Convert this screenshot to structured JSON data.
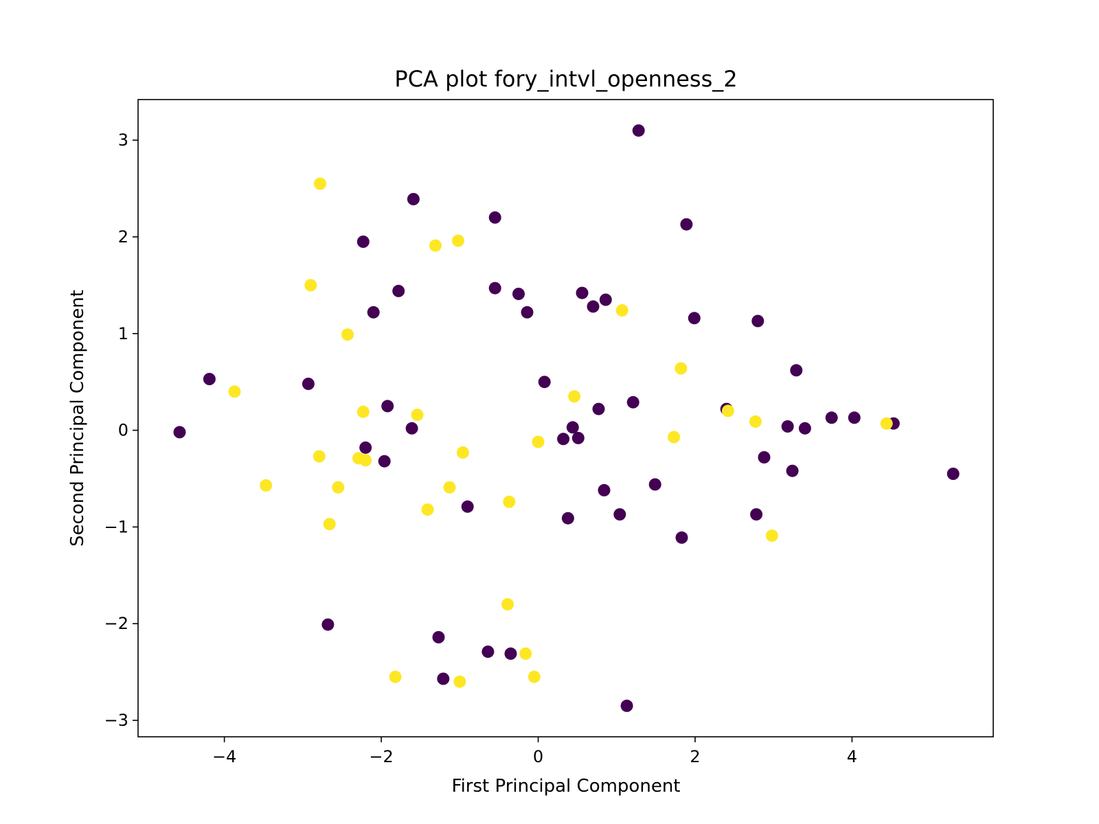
{
  "chart_data": {
    "type": "scatter",
    "title": "PCA plot fory_intvl_openness_2",
    "xlabel": "First Principal Component",
    "ylabel": "Second Principal Component",
    "xlim": [
      -5.1,
      5.8
    ],
    "ylim": [
      -3.17,
      3.42
    ],
    "xticks": [
      -4,
      -2,
      0,
      2,
      4
    ],
    "yticks": [
      -3,
      -2,
      -1,
      0,
      1,
      2,
      3
    ],
    "grid": false,
    "legend": "none",
    "colors": {
      "class_0": "#440154",
      "class_1": "#fde725"
    },
    "series": [
      {
        "class": "class_0",
        "color": "#440154",
        "points": [
          [
            1.28,
            3.1
          ],
          [
            -1.59,
            2.39
          ],
          [
            -0.55,
            2.2
          ],
          [
            1.89,
            2.13
          ],
          [
            -2.23,
            1.95
          ],
          [
            -1.78,
            1.44
          ],
          [
            -0.55,
            1.47
          ],
          [
            -0.25,
            1.41
          ],
          [
            0.56,
            1.42
          ],
          [
            0.86,
            1.35
          ],
          [
            0.7,
            1.28
          ],
          [
            -2.1,
            1.22
          ],
          [
            -0.14,
            1.22
          ],
          [
            1.99,
            1.16
          ],
          [
            2.8,
            1.13
          ],
          [
            3.29,
            0.62
          ],
          [
            -4.19,
            0.53
          ],
          [
            -2.93,
            0.48
          ],
          [
            0.08,
            0.5
          ],
          [
            1.21,
            0.29
          ],
          [
            -1.92,
            0.25
          ],
          [
            0.77,
            0.22
          ],
          [
            2.4,
            0.22
          ],
          [
            3.74,
            0.13
          ],
          [
            4.03,
            0.13
          ],
          [
            4.53,
            0.07
          ],
          [
            3.18,
            0.04
          ],
          [
            3.4,
            0.02
          ],
          [
            -1.61,
            0.02
          ],
          [
            0.44,
            0.03
          ],
          [
            -4.57,
            -0.02
          ],
          [
            0.32,
            -0.09
          ],
          [
            0.51,
            -0.08
          ],
          [
            -2.2,
            -0.18
          ],
          [
            -1.96,
            -0.32
          ],
          [
            2.88,
            -0.28
          ],
          [
            3.24,
            -0.42
          ],
          [
            5.29,
            -0.45
          ],
          [
            1.49,
            -0.56
          ],
          [
            0.84,
            -0.62
          ],
          [
            -0.9,
            -0.79
          ],
          [
            0.38,
            -0.91
          ],
          [
            1.04,
            -0.87
          ],
          [
            2.78,
            -0.87
          ],
          [
            1.83,
            -1.11
          ],
          [
            -2.68,
            -2.01
          ],
          [
            -1.27,
            -2.14
          ],
          [
            -0.64,
            -2.29
          ],
          [
            -0.35,
            -2.31
          ],
          [
            -1.21,
            -2.57
          ],
          [
            1.13,
            -2.85
          ]
        ]
      },
      {
        "class": "class_1",
        "color": "#fde725",
        "points": [
          [
            -2.78,
            2.55
          ],
          [
            -1.31,
            1.91
          ],
          [
            -1.02,
            1.96
          ],
          [
            -2.9,
            1.5
          ],
          [
            1.07,
            1.24
          ],
          [
            -2.43,
            0.99
          ],
          [
            1.82,
            0.64
          ],
          [
            -3.87,
            0.4
          ],
          [
            0.46,
            0.35
          ],
          [
            -2.23,
            0.19
          ],
          [
            -1.54,
            0.16
          ],
          [
            2.42,
            0.2
          ],
          [
            2.77,
            0.09
          ],
          [
            4.44,
            0.07
          ],
          [
            1.73,
            -0.07
          ],
          [
            0.0,
            -0.12
          ],
          [
            -0.96,
            -0.23
          ],
          [
            -2.79,
            -0.27
          ],
          [
            -2.29,
            -0.29
          ],
          [
            -2.2,
            -0.31
          ],
          [
            -3.47,
            -0.57
          ],
          [
            -2.55,
            -0.59
          ],
          [
            -1.13,
            -0.59
          ],
          [
            -1.41,
            -0.82
          ],
          [
            -0.37,
            -0.74
          ],
          [
            -2.66,
            -0.97
          ],
          [
            2.98,
            -1.09
          ],
          [
            -0.39,
            -1.8
          ],
          [
            -0.16,
            -2.31
          ],
          [
            -1.82,
            -2.55
          ],
          [
            -0.05,
            -2.55
          ],
          [
            -1.0,
            -2.6
          ]
        ]
      }
    ]
  }
}
